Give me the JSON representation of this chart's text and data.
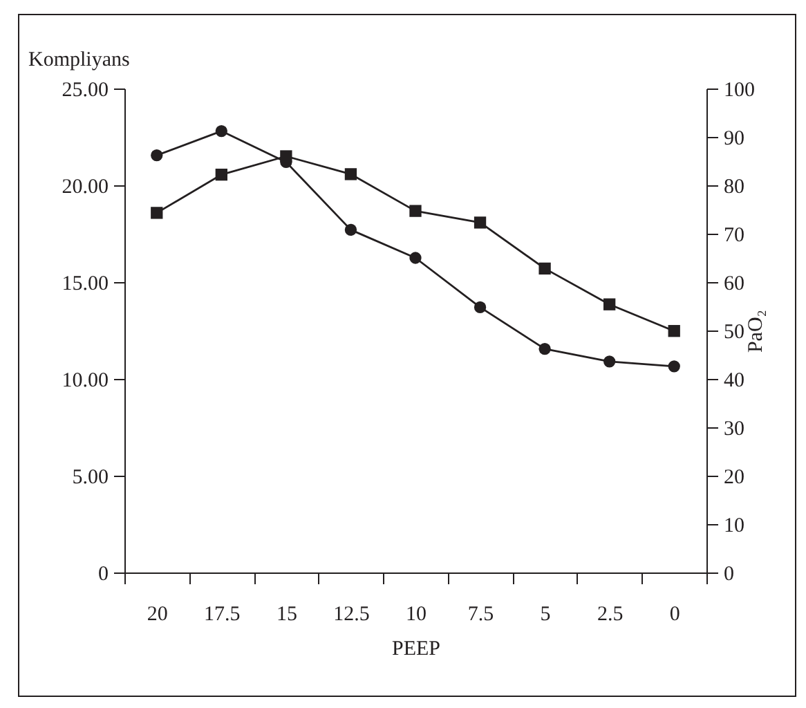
{
  "chart_data": {
    "type": "line",
    "xlabel": "PEEP",
    "ylabel": "Kompliyans",
    "y2label": "PaO₂",
    "categories": [
      "20",
      "17.5",
      "15",
      "12.5",
      "10",
      "7.5",
      "5",
      "2.5",
      "0"
    ],
    "series": [
      {
        "color": "#231f20",
        "marker": "circle",
        "values": [
          21.55,
          22.8,
          21.2,
          17.7,
          16.25,
          13.7,
          11.55,
          10.9,
          10.65
        ]
      },
      {
        "color": "#231f20",
        "marker": "square",
        "axis": "y2",
        "values": [
          74.3,
          82.2,
          86.0,
          82.3,
          74.7,
          72.3,
          62.8,
          55.4,
          49.9
        ]
      }
    ],
    "ylim": [
      0,
      25
    ],
    "yticks": [
      {
        "value": 0,
        "label": "0"
      },
      {
        "value": 5,
        "label": "5.00"
      },
      {
        "value": 10,
        "label": "10.00"
      },
      {
        "value": 15,
        "label": "15.00"
      },
      {
        "value": 20,
        "label": "20.00"
      },
      {
        "value": 25,
        "label": "25.00"
      }
    ],
    "y2lim": [
      0,
      100
    ],
    "y2ticks": [
      0,
      10,
      20,
      30,
      40,
      50,
      60,
      70,
      80,
      90,
      100
    ],
    "grid": false
  }
}
